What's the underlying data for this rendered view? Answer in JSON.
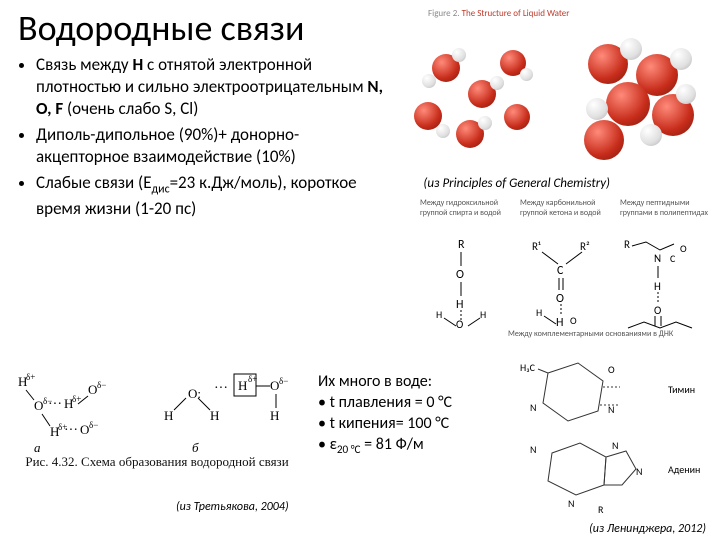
{
  "title": "Водородные связи",
  "bullets": [
    "Связь между <b>H</b> с отнятой электронной плотностью и сильно электроотрицательным <b>N, O, F</b> (очень слабо S, Cl)",
    "Диполь-дипольное (90%)+ донорно-акцепторное взаимодействие (10%)",
    "Слабые связи (Е<span class=\"sub\">дис</span>=23 к.Дж/моль), короткое время жизни (1-20 пс)"
  ],
  "fig_top_caption_prefix": "Figure 2.",
  "fig_top_caption": "The Structure of Liquid Water",
  "cite1": "(из Principles of General Chemistry)",
  "diag_right_headers": [
    "Между гидроксильной группой спирта и водой",
    "Между карбонильной группой кетона и водой",
    "Между пептидными группами в полипептидах"
  ],
  "fig_bl_caption": "Рис. 4.32. Схема образования водородной связи",
  "water_header": "Их много в воде:",
  "water_lines": [
    "t плавления = 0 °C",
    "t кипения= 100 °C",
    "ε<span class=\"sub\">20 °C</span> = 81 Ф/м"
  ],
  "cite2": "(из Третьякова, 2004)",
  "fig_br_caption": "Между комплементарными основаниями в ДНК",
  "fig_br_labels": {
    "t": "Тимин",
    "a": "Аденин"
  },
  "cite3": "(из Ленинджера, 2012)",
  "labels": {
    "a": "а",
    "b": "б"
  },
  "atoms": {
    "O": "O",
    "H": "H",
    "R": "R",
    "R1": "R¹",
    "R2": "R²",
    "C": "C",
    "N": "N"
  },
  "colors": {
    "red": "#c72c1a",
    "white": "#e8e8e8",
    "text": "#000000",
    "grey": "#888888"
  }
}
